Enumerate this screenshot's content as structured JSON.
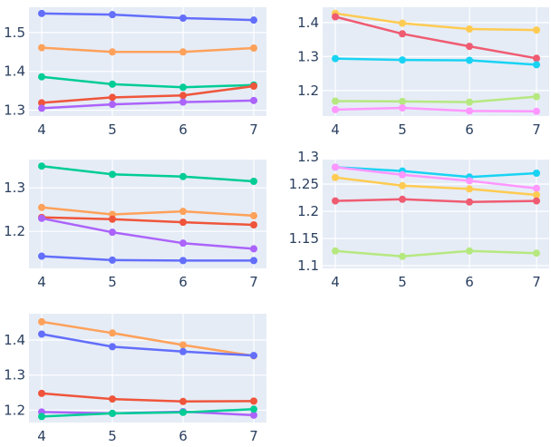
{
  "chart_data": [
    {
      "type": "line",
      "x": [
        4,
        5,
        6,
        7
      ],
      "ylim": [
        1.285,
        1.565
      ],
      "yticks": [
        1.3,
        1.4,
        1.5
      ],
      "ytick_labels": [
        "1.3",
        "1.4",
        "1.5"
      ],
      "xtick_labels": [
        "4",
        "5",
        "6",
        "7"
      ],
      "series": [
        {
          "color": "#636efa",
          "values": [
            1.549,
            1.546,
            1.537,
            1.532
          ]
        },
        {
          "color": "#fea15a",
          "values": [
            1.461,
            1.45,
            1.45,
            1.46
          ]
        },
        {
          "color": "#00cc96",
          "values": [
            1.386,
            1.367,
            1.359,
            1.365
          ]
        },
        {
          "color": "#ef553b",
          "values": [
            1.319,
            1.333,
            1.338,
            1.362
          ]
        },
        {
          "color": "#ab63fa",
          "values": [
            1.305,
            1.315,
            1.321,
            1.325
          ]
        }
      ]
    },
    {
      "type": "line",
      "x": [
        4,
        5,
        6,
        7
      ],
      "ylim": [
        1.125,
        1.445
      ],
      "yticks": [
        1.2,
        1.3,
        1.4
      ],
      "ytick_labels": [
        "1.2",
        "1.3",
        "1.4"
      ],
      "xtick_labels": [
        "4",
        "5",
        "6",
        "7"
      ],
      "series": [
        {
          "color": "#fecb52",
          "values": [
            1.427,
            1.398,
            1.381,
            1.378
          ]
        },
        {
          "color": "#ef5c72",
          "values": [
            1.417,
            1.367,
            1.33,
            1.295
          ]
        },
        {
          "color": "#19d3f3",
          "values": [
            1.294,
            1.29,
            1.289,
            1.276
          ]
        },
        {
          "color": "#b6e880",
          "values": [
            1.169,
            1.168,
            1.166,
            1.182
          ]
        },
        {
          "color": "#ff97ff",
          "values": [
            1.144,
            1.149,
            1.14,
            1.139
          ]
        }
      ]
    },
    {
      "type": "line",
      "x": [
        4,
        5,
        6,
        7
      ],
      "ylim": [
        1.115,
        1.365
      ],
      "yticks": [
        1.2,
        1.3
      ],
      "ytick_labels": [
        "1.2",
        "1.3"
      ],
      "xtick_labels": [
        "4",
        "5",
        "6",
        "7"
      ],
      "series": [
        {
          "color": "#00cc96",
          "values": [
            1.35,
            1.331,
            1.326,
            1.315
          ]
        },
        {
          "color": "#fea15a",
          "values": [
            1.255,
            1.239,
            1.246,
            1.236
          ]
        },
        {
          "color": "#ef553b",
          "values": [
            1.232,
            1.228,
            1.221,
            1.215
          ]
        },
        {
          "color": "#ab63fa",
          "values": [
            1.23,
            1.198,
            1.173,
            1.16
          ]
        },
        {
          "color": "#636efa",
          "values": [
            1.143,
            1.134,
            1.133,
            1.133
          ]
        }
      ]
    },
    {
      "type": "line",
      "x": [
        4,
        5,
        6,
        7
      ],
      "ylim": [
        1.095,
        1.295
      ],
      "yticks": [
        1.1,
        1.15,
        1.2,
        1.25,
        1.3
      ],
      "ytick_labels": [
        "1.1",
        "1.15",
        "1.2",
        "1.25",
        "1.3"
      ],
      "xtick_labels": [
        "4",
        "5",
        "6",
        "7"
      ],
      "series": [
        {
          "color": "#19d3f3",
          "values": [
            1.281,
            1.274,
            1.263,
            1.27
          ]
        },
        {
          "color": "#ff97ff",
          "values": [
            1.281,
            1.267,
            1.256,
            1.242
          ]
        },
        {
          "color": "#fecb52",
          "values": [
            1.262,
            1.247,
            1.241,
            1.23
          ]
        },
        {
          "color": "#ef5c72",
          "values": [
            1.219,
            1.222,
            1.217,
            1.219
          ]
        },
        {
          "color": "#b6e880",
          "values": [
            1.127,
            1.117,
            1.127,
            1.123
          ]
        }
      ]
    },
    {
      "type": "line",
      "x": [
        4,
        5,
        6,
        7
      ],
      "ylim": [
        1.165,
        1.475
      ],
      "yticks": [
        1.2,
        1.3,
        1.4
      ],
      "ytick_labels": [
        "1.2",
        "1.3",
        "1.4"
      ],
      "xtick_labels": [
        "4",
        "5",
        "6",
        "7"
      ],
      "series": [
        {
          "color": "#fea15a",
          "values": [
            1.452,
            1.42,
            1.386,
            1.355
          ]
        },
        {
          "color": "#636efa",
          "values": [
            1.417,
            1.381,
            1.367,
            1.356
          ]
        },
        {
          "color": "#ef553b",
          "values": [
            1.248,
            1.232,
            1.225,
            1.226
          ]
        },
        {
          "color": "#ab63fa",
          "values": [
            1.195,
            1.191,
            1.196,
            1.186
          ]
        },
        {
          "color": "#00cc96",
          "values": [
            1.182,
            1.191,
            1.194,
            1.203
          ]
        }
      ]
    }
  ]
}
